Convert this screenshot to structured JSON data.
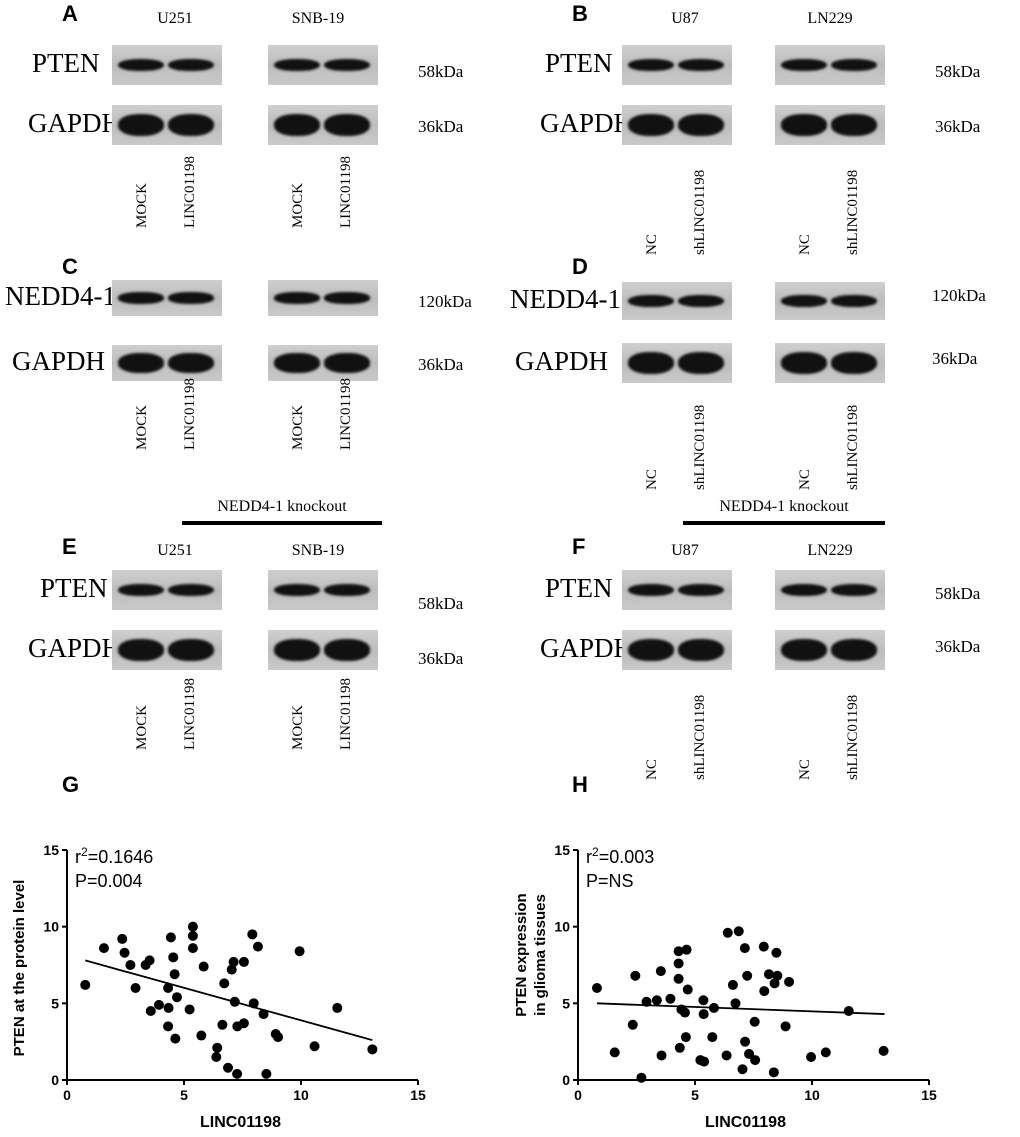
{
  "panels": {
    "A": {
      "letter": "A",
      "cells": [
        "U251",
        "SNB-19"
      ],
      "proteins": [
        "PTEN",
        "GAPDH"
      ],
      "kda": [
        "58kDa",
        "36kDa"
      ],
      "lanes": [
        "MOCK",
        "LINC01198",
        "MOCK",
        "LINC01198"
      ]
    },
    "B": {
      "letter": "B",
      "cells": [
        "U87",
        "LN229"
      ],
      "proteins": [
        "PTEN",
        "GAPDH"
      ],
      "kda": [
        "58kDa",
        "36kDa"
      ],
      "lanes": [
        "NC",
        "shLINC01198",
        "NC",
        "shLINC01198"
      ]
    },
    "C": {
      "letter": "C",
      "cells": [
        "U251",
        "SNB-19"
      ],
      "proteins": [
        "NEDD4-1",
        "GAPDH"
      ],
      "kda": [
        "120kDa",
        "36kDa"
      ],
      "lanes": [
        "MOCK",
        "LINC01198",
        "MOCK",
        "LINC01198"
      ]
    },
    "D": {
      "letter": "D",
      "cells": [
        "U87",
        "LN229"
      ],
      "proteins": [
        "NEDD4-1",
        "GAPDH"
      ],
      "kda": [
        "120kDa",
        "36kDa"
      ],
      "lanes": [
        "NC",
        "shLINC01198",
        "NC",
        "shLINC01198"
      ]
    },
    "E": {
      "letter": "E",
      "header": "NEDD4-1 knockout",
      "cells": [
        "U251",
        "SNB-19"
      ],
      "proteins": [
        "PTEN",
        "GAPDH"
      ],
      "kda": [
        "58kDa",
        "36kDa"
      ],
      "lanes": [
        "MOCK",
        "LINC01198",
        "MOCK",
        "LINC01198"
      ]
    },
    "F": {
      "letter": "F",
      "header": "NEDD4-1 knockout",
      "cells": [
        "U87",
        "LN229"
      ],
      "proteins": [
        "PTEN",
        "GAPDH"
      ],
      "kda": [
        "58kDa",
        "36kDa"
      ],
      "lanes": [
        "NC",
        "shLINC01198",
        "NC",
        "shLINC01198"
      ]
    },
    "G": {
      "letter": "G"
    },
    "H": {
      "letter": "H"
    }
  },
  "chart_data": [
    {
      "type": "scatter",
      "panel": "G",
      "xlabel": "LINC01198",
      "ylabel": "PTEN at the protein level",
      "xlim": [
        0,
        15
      ],
      "ylim": [
        0,
        15
      ],
      "xticks": [
        "0",
        "5",
        "10",
        "15"
      ],
      "yticks": [
        "0",
        "5",
        "10",
        "15"
      ],
      "annotation": [
        "r2=0.1646",
        "P=0.004"
      ],
      "fit_line": [
        [
          0.78,
          7.8
        ],
        [
          13.05,
          2.6
        ]
      ],
      "points": [
        [
          0.78,
          6.2
        ],
        [
          1.58,
          8.6
        ],
        [
          2.36,
          9.2
        ],
        [
          2.46,
          8.3
        ],
        [
          2.71,
          7.5
        ],
        [
          2.93,
          6.0
        ],
        [
          3.36,
          7.5
        ],
        [
          3.53,
          7.8
        ],
        [
          3.58,
          4.5
        ],
        [
          3.93,
          4.9
        ],
        [
          4.32,
          6.0
        ],
        [
          4.34,
          4.7
        ],
        [
          4.32,
          3.5
        ],
        [
          4.44,
          9.3
        ],
        [
          4.54,
          8.0
        ],
        [
          4.6,
          6.9
        ],
        [
          4.7,
          5.4
        ],
        [
          4.63,
          2.7
        ],
        [
          5.24,
          4.6
        ],
        [
          5.38,
          10.0
        ],
        [
          5.38,
          9.4
        ],
        [
          5.38,
          8.6
        ],
        [
          5.74,
          2.9
        ],
        [
          5.84,
          7.4
        ],
        [
          6.42,
          2.1
        ],
        [
          6.38,
          1.5
        ],
        [
          6.64,
          3.6
        ],
        [
          6.72,
          6.3
        ],
        [
          6.88,
          0.8
        ],
        [
          7.04,
          7.2
        ],
        [
          7.12,
          7.7
        ],
        [
          7.17,
          5.1
        ],
        [
          7.27,
          0.4
        ],
        [
          7.28,
          3.5
        ],
        [
          7.56,
          3.7
        ],
        [
          7.56,
          7.7
        ],
        [
          7.92,
          9.5
        ],
        [
          7.98,
          5.0
        ],
        [
          8.16,
          8.7
        ],
        [
          8.4,
          4.3
        ],
        [
          8.52,
          0.4
        ],
        [
          8.92,
          3.0
        ],
        [
          9.02,
          2.8
        ],
        [
          9.94,
          8.4
        ],
        [
          10.58,
          2.2
        ],
        [
          11.55,
          4.7
        ],
        [
          13.05,
          2.0
        ]
      ]
    },
    {
      "type": "scatter",
      "panel": "H",
      "xlabel": "LINC01198",
      "ylabel": [
        "PTEN  expression",
        "in glioma tissues"
      ],
      "xlim": [
        0,
        15
      ],
      "ylim": [
        0,
        15
      ],
      "xticks": [
        "0",
        "5",
        "10",
        "15"
      ],
      "yticks": [
        "0",
        "5",
        "10",
        "15"
      ],
      "annotation": [
        "r2=0.003",
        "P=NS"
      ],
      "fit_line": [
        [
          0.81,
          5.0
        ],
        [
          13.1,
          4.3
        ]
      ],
      "points": [
        [
          0.81,
          6.0
        ],
        [
          1.57,
          1.8
        ],
        [
          2.34,
          3.6
        ],
        [
          2.45,
          6.8
        ],
        [
          2.71,
          0.15
        ],
        [
          2.93,
          5.1
        ],
        [
          3.37,
          5.2
        ],
        [
          3.54,
          7.1
        ],
        [
          3.57,
          1.6
        ],
        [
          3.95,
          5.3
        ],
        [
          4.3,
          8.4
        ],
        [
          4.3,
          7.6
        ],
        [
          4.3,
          6.6
        ],
        [
          4.35,
          2.1
        ],
        [
          4.42,
          4.6
        ],
        [
          4.57,
          4.4
        ],
        [
          4.61,
          2.8
        ],
        [
          4.64,
          8.5
        ],
        [
          4.69,
          5.9
        ],
        [
          5.23,
          1.3
        ],
        [
          5.39,
          1.2
        ],
        [
          5.36,
          5.2
        ],
        [
          5.37,
          4.3
        ],
        [
          5.74,
          2.8
        ],
        [
          5.81,
          4.7
        ],
        [
          6.35,
          1.6
        ],
        [
          6.4,
          9.6
        ],
        [
          6.62,
          6.2
        ],
        [
          6.73,
          5.0
        ],
        [
          6.87,
          9.7
        ],
        [
          7.03,
          0.7
        ],
        [
          7.13,
          8.6
        ],
        [
          7.14,
          2.5
        ],
        [
          7.23,
          6.8
        ],
        [
          7.31,
          1.7
        ],
        [
          7.55,
          3.8
        ],
        [
          7.57,
          1.3
        ],
        [
          7.94,
          8.7
        ],
        [
          7.96,
          5.8
        ],
        [
          8.16,
          6.9
        ],
        [
          8.37,
          0.5
        ],
        [
          8.4,
          6.3
        ],
        [
          8.48,
          8.3
        ],
        [
          8.52,
          6.8
        ],
        [
          8.87,
          3.5
        ],
        [
          9.02,
          6.4
        ],
        [
          9.96,
          1.5
        ],
        [
          10.59,
          1.8
        ],
        [
          11.57,
          4.5
        ],
        [
          13.06,
          1.9
        ]
      ]
    }
  ]
}
